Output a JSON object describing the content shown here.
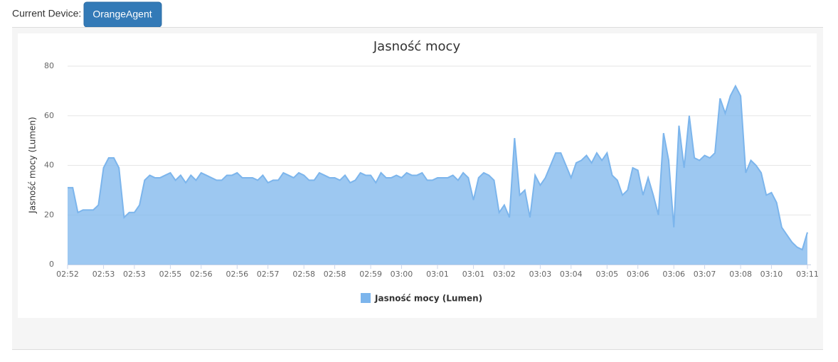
{
  "header": {
    "device_label": "Current Device:",
    "device_button": "OrangeAgent"
  },
  "chart_data": {
    "type": "area",
    "title": "Jasność mocy",
    "y_label": "Jasność mocy (Lumen)",
    "categories": [
      "02:52",
      null,
      null,
      null,
      null,
      null,
      null,
      "02:53",
      null,
      null,
      null,
      null,
      null,
      "02:53",
      null,
      null,
      null,
      null,
      null,
      null,
      "02:55",
      null,
      null,
      null,
      null,
      null,
      "02:56",
      null,
      null,
      null,
      null,
      null,
      null,
      "02:56",
      null,
      null,
      null,
      null,
      null,
      "02:57",
      null,
      null,
      null,
      null,
      null,
      null,
      "02:58",
      null,
      null,
      null,
      null,
      null,
      "02:58",
      null,
      null,
      null,
      null,
      null,
      null,
      "02:59",
      null,
      null,
      null,
      null,
      null,
      "03:00",
      null,
      null,
      null,
      null,
      null,
      null,
      "03:01",
      null,
      null,
      null,
      null,
      null,
      null,
      "03:01",
      null,
      null,
      null,
      null,
      null,
      "03:02",
      null,
      null,
      null,
      null,
      null,
      null,
      "03:03",
      null,
      null,
      null,
      null,
      null,
      "03:04",
      null,
      null,
      null,
      null,
      null,
      null,
      "03:05",
      null,
      null,
      null,
      null,
      null,
      "03:06",
      null,
      null,
      null,
      null,
      null,
      null,
      "03:06",
      null,
      null,
      null,
      null,
      null,
      "03:07",
      null,
      null,
      null,
      null,
      null,
      null,
      "03:08",
      null,
      null,
      null,
      null,
      null,
      "03:10",
      null,
      null,
      null,
      null,
      null,
      null,
      "03:11"
    ],
    "series": [
      {
        "name": "Jasność mocy (Lumen)",
        "color": "#7cb5ec",
        "values": [
          31,
          31,
          21,
          22,
          22,
          22,
          24,
          39,
          43,
          43,
          39,
          19,
          21,
          21,
          24,
          34,
          36,
          35,
          35,
          36,
          37,
          34,
          36,
          33,
          36,
          34,
          37,
          36,
          35,
          34,
          34,
          36,
          36,
          37,
          35,
          35,
          35,
          34,
          36,
          33,
          34,
          34,
          37,
          36,
          35,
          37,
          36,
          34,
          34,
          37,
          36,
          35,
          35,
          34,
          36,
          33,
          34,
          37,
          36,
          36,
          33,
          37,
          35,
          35,
          36,
          35,
          37,
          36,
          36,
          37,
          34,
          34,
          35,
          35,
          35,
          36,
          34,
          37,
          35,
          26,
          35,
          37,
          36,
          34,
          21,
          24,
          19,
          51,
          28,
          30,
          19,
          36,
          32,
          35,
          40,
          45,
          45,
          40,
          35,
          41,
          42,
          44,
          41,
          45,
          42,
          45,
          36,
          34,
          28,
          30,
          39,
          38,
          28,
          35,
          28,
          20,
          53,
          42,
          15,
          56,
          39,
          60,
          43,
          42,
          44,
          43,
          45,
          67,
          61,
          68,
          72,
          68,
          37,
          42,
          40,
          37,
          28,
          29,
          25,
          15,
          12,
          9,
          7,
          6,
          13
        ]
      }
    ],
    "ylim": [
      0,
      80
    ],
    "yticks": [
      0,
      20,
      40,
      60,
      80
    ],
    "grid": true
  }
}
